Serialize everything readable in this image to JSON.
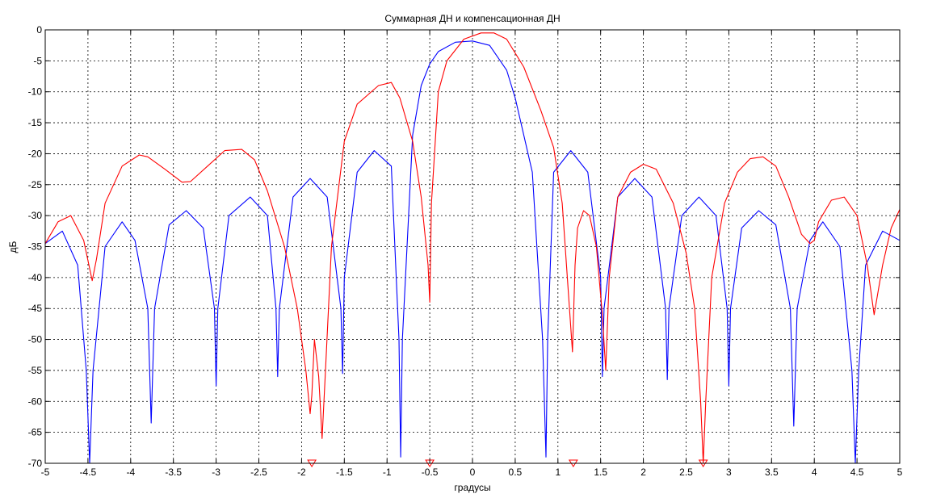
{
  "chart_data": {
    "type": "line",
    "title": "Суммарная ДН и компенсационная ДН",
    "xlabel": "градусы",
    "ylabel": "дБ",
    "xlim": [
      -5,
      5
    ],
    "ylim": [
      -70,
      0
    ],
    "grid": true,
    "x_ticks": [
      "-5",
      "-4.5",
      "-4",
      "-3.5",
      "-3",
      "-2.5",
      "-2",
      "-1.5",
      "-1",
      "-0.5",
      "0",
      "0.5",
      "1",
      "1.5",
      "2",
      "2.5",
      "3",
      "3.5",
      "4",
      "4.5",
      "5"
    ],
    "y_ticks": [
      "0",
      "-5",
      "-10",
      "-15",
      "-20",
      "-25",
      "-30",
      "-35",
      "-40",
      "-45",
      "-50",
      "-55",
      "-60",
      "-65",
      "-70"
    ],
    "series": [
      {
        "color": "#0000ff",
        "x": [
          -5.0,
          -4.8,
          -4.62,
          -4.52,
          -4.48,
          -4.44,
          -4.3,
          -4.1,
          -3.95,
          -3.8,
          -3.76,
          -3.72,
          -3.55,
          -3.35,
          -3.15,
          -3.02,
          -3.0,
          -2.98,
          -2.85,
          -2.6,
          -2.4,
          -2.3,
          -2.28,
          -2.26,
          -2.1,
          -1.9,
          -1.7,
          -1.54,
          -1.52,
          -1.5,
          -1.35,
          -1.15,
          -0.95,
          -0.86,
          -0.84,
          -0.82,
          -0.7,
          -0.6,
          -0.5,
          -0.4,
          -0.2,
          0.0,
          0.2,
          0.4,
          0.5,
          0.6,
          0.7,
          0.82,
          0.86,
          0.88,
          0.95,
          1.15,
          1.35,
          1.5,
          1.52,
          1.54,
          1.7,
          1.9,
          2.1,
          2.26,
          2.28,
          2.3,
          2.45,
          2.65,
          2.85,
          2.98,
          3.0,
          3.02,
          3.15,
          3.35,
          3.55,
          3.72,
          3.76,
          3.8,
          3.95,
          4.1,
          4.3,
          4.44,
          4.48,
          4.52,
          4.6,
          4.8,
          5.0
        ],
        "y": [
          -34.5,
          -32.5,
          -38,
          -55,
          -70,
          -55,
          -35,
          -31,
          -34,
          -45,
          -63.5,
          -45,
          -31.5,
          -29.2,
          -32,
          -45,
          -57.5,
          -45,
          -30,
          -27,
          -30,
          -45,
          -56,
          -45,
          -27,
          -24,
          -27,
          -45,
          -55.5,
          -40,
          -23,
          -19.5,
          -22,
          -50,
          -69,
          -50,
          -17,
          -9,
          -5.5,
          -3.5,
          -2,
          -1.8,
          -2.5,
          -6.5,
          -11,
          -17,
          -23,
          -50,
          -69,
          -50,
          -23,
          -19.5,
          -23,
          -40,
          -56,
          -45,
          -27,
          -24,
          -27,
          -45,
          -56.5,
          -45,
          -30,
          -27,
          -30,
          -45,
          -57.5,
          -45,
          -32,
          -29.2,
          -31.5,
          -45,
          -64,
          -45,
          -34,
          -31,
          -35,
          -55,
          -70,
          -55,
          -38,
          -32.5,
          -34
        ]
      },
      {
        "color": "#ff0000",
        "x": [
          -5.0,
          -4.85,
          -4.7,
          -4.55,
          -4.45,
          -4.4,
          -4.3,
          -4.1,
          -3.9,
          -3.8,
          -3.6,
          -3.4,
          -3.3,
          -3.1,
          -2.9,
          -2.7,
          -2.55,
          -2.4,
          -2.2,
          -2.05,
          -1.95,
          -1.9,
          -1.88,
          -1.85,
          -1.8,
          -1.76,
          -1.72,
          -1.65,
          -1.5,
          -1.35,
          -1.1,
          -0.95,
          -0.85,
          -0.7,
          -0.6,
          -0.52,
          -0.5,
          -0.48,
          -0.4,
          -0.3,
          -0.1,
          0.1,
          0.25,
          0.4,
          0.6,
          0.8,
          0.95,
          1.05,
          1.12,
          1.17,
          1.2,
          1.23,
          1.3,
          1.37,
          1.45,
          1.52,
          1.56,
          1.6,
          1.7,
          1.85,
          2.0,
          2.15,
          2.35,
          2.5,
          2.6,
          2.67,
          2.7,
          2.73,
          2.8,
          2.95,
          3.1,
          3.25,
          3.4,
          3.55,
          3.7,
          3.85,
          3.95,
          4.0,
          4.05,
          4.2,
          4.35,
          4.5,
          4.62,
          4.7,
          4.8,
          4.9,
          5.0
        ],
        "y": [
          -34.5,
          -31,
          -30,
          -34,
          -40.5,
          -37,
          -28,
          -22,
          -20.2,
          -20.5,
          -22.5,
          -24.6,
          -24.5,
          -22,
          -19.5,
          -19.3,
          -21,
          -26,
          -35,
          -45,
          -55,
          -62,
          -59,
          -50,
          -56,
          -66,
          -55,
          -35,
          -18,
          -12,
          -9,
          -8.5,
          -11,
          -18,
          -27,
          -38,
          -44,
          -28,
          -10,
          -5,
          -1.5,
          -0.5,
          -0.5,
          -1.5,
          -6,
          -13,
          -19,
          -28,
          -42,
          -52,
          -38,
          -32,
          -29.2,
          -30,
          -35,
          -46,
          -55,
          -40,
          -27,
          -23,
          -21.7,
          -22.5,
          -28,
          -36,
          -45,
          -60,
          -70,
          -60,
          -40,
          -28,
          -23,
          -20.8,
          -20.5,
          -22,
          -27,
          -33,
          -34.5,
          -34,
          -31,
          -27.5,
          -27,
          -30,
          -38,
          -46,
          -38,
          -32,
          -29
        ]
      }
    ],
    "markers": {
      "color": "#ff0000",
      "symbol": "triangle-down",
      "x": [
        -1.88,
        -0.5,
        1.18,
        2.7
      ],
      "y": [
        -70,
        -70,
        -70,
        -70
      ]
    }
  }
}
